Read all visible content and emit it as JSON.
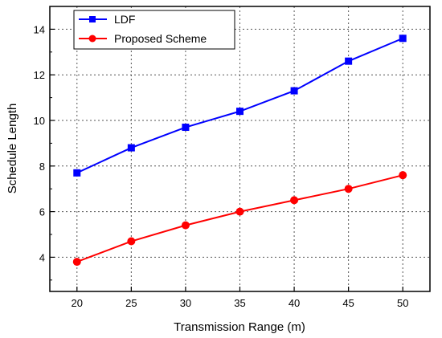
{
  "chart_data": {
    "type": "line",
    "title": "",
    "xlabel": "Transmission Range (m)",
    "ylabel": "Schedule Length",
    "x": [
      20,
      25,
      30,
      35,
      40,
      45,
      50
    ],
    "x_ticks": [
      "20",
      "25",
      "30",
      "35",
      "40",
      "45",
      "50"
    ],
    "xlim": [
      17.5,
      52.5
    ],
    "ylim": [
      2.5,
      15
    ],
    "y_ticks": [
      "4",
      "6",
      "8",
      "10",
      "12",
      "14"
    ],
    "grid": true,
    "legend": "top-left",
    "series": [
      {
        "name": "LDF",
        "color": "#0000ff",
        "marker": "square",
        "values": [
          7.7,
          8.8,
          9.7,
          10.4,
          11.3,
          12.6,
          13.6
        ]
      },
      {
        "name": "Proposed Scheme",
        "color": "#ff0000",
        "marker": "circle",
        "values": [
          3.8,
          4.7,
          5.4,
          6.0,
          6.5,
          7.0,
          7.6
        ]
      }
    ]
  }
}
